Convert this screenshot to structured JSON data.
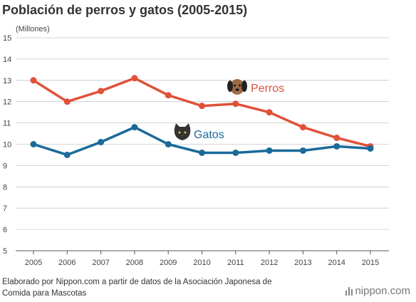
{
  "title": "Población de perros y gatos (2005-2015)",
  "source_note": "Elaborado por Nippon.com a partir de datos de la Asociación Japonesa de Comida para Mascotas",
  "brand": "nippon.com",
  "chart_data": {
    "type": "line",
    "title": "Población de perros y gatos (2005-2015)",
    "ylabel": "(Millones)",
    "xlabel": "",
    "x": [
      "2005",
      "2006",
      "2007",
      "2008",
      "2009",
      "2010",
      "2011",
      "2012",
      "2013",
      "2014",
      "2015"
    ],
    "ylim": [
      5,
      15
    ],
    "yticks": [
      "5",
      "6",
      "7",
      "8",
      "9",
      "10",
      "11",
      "12",
      "13",
      "14",
      "15"
    ],
    "grid": true,
    "series": [
      {
        "name": "Perros",
        "color": "#e0513a",
        "icon": "dog-icon",
        "values": [
          13.0,
          12.0,
          12.5,
          13.1,
          12.3,
          11.8,
          11.9,
          11.5,
          10.8,
          10.3,
          9.9
        ]
      },
      {
        "name": "Gatos",
        "color": "#1a6a9a",
        "icon": "cat-icon",
        "values": [
          10.0,
          9.5,
          10.1,
          10.8,
          10.0,
          9.6,
          9.6,
          9.7,
          9.7,
          9.9,
          9.8
        ]
      }
    ]
  }
}
